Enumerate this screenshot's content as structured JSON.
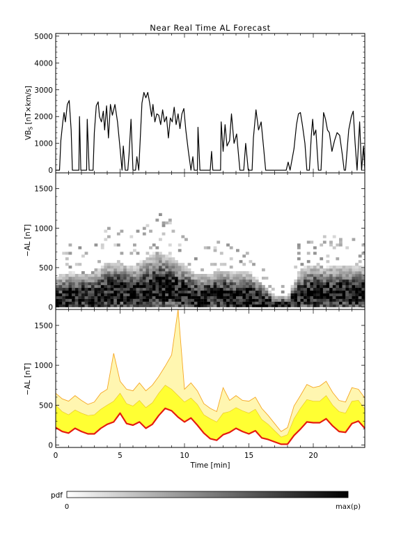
{
  "chart_data": [
    {
      "type": "line",
      "title": "Near Real Time AL Forecast",
      "ylabel_main": "VB",
      "ylabel_sub": "S",
      "ylabel_rest": " [nT×km/s]",
      "xlim": [
        0,
        24
      ],
      "ylim": [
        -100,
        5100
      ],
      "yticks": [
        0,
        1000,
        2000,
        3000,
        4000,
        5000
      ],
      "ytick_labels": [
        "0",
        "1000",
        "2000",
        "3000",
        "4000",
        "5000"
      ],
      "series": [
        {
          "color": "#000000",
          "points": [
            [
              0.0,
              0
            ],
            [
              0.3,
              0
            ],
            [
              0.4,
              1100
            ],
            [
              0.55,
              1800
            ],
            [
              0.65,
              2150
            ],
            [
              0.75,
              1800
            ],
            [
              0.9,
              2450
            ],
            [
              1.05,
              2600
            ],
            [
              1.2,
              1500
            ],
            [
              1.3,
              0
            ],
            [
              1.8,
              0
            ],
            [
              1.85,
              2000
            ],
            [
              1.95,
              0
            ],
            [
              2.4,
              0
            ],
            [
              2.45,
              1900
            ],
            [
              2.6,
              0
            ],
            [
              2.9,
              0
            ],
            [
              3.0,
              1400
            ],
            [
              3.15,
              2400
            ],
            [
              3.3,
              2550
            ],
            [
              3.4,
              2000
            ],
            [
              3.55,
              1800
            ],
            [
              3.7,
              2200
            ],
            [
              3.8,
              1500
            ],
            [
              3.95,
              2400
            ],
            [
              4.1,
              1200
            ],
            [
              4.25,
              2450
            ],
            [
              4.4,
              2050
            ],
            [
              4.6,
              2450
            ],
            [
              4.8,
              1800
            ],
            [
              5.0,
              800
            ],
            [
              5.15,
              0
            ],
            [
              5.25,
              900
            ],
            [
              5.4,
              0
            ],
            [
              5.6,
              0
            ],
            [
              5.7,
              600
            ],
            [
              5.85,
              1900
            ],
            [
              6.0,
              0
            ],
            [
              6.2,
              0
            ],
            [
              6.3,
              500
            ],
            [
              6.45,
              0
            ],
            [
              6.7,
              2500
            ],
            [
              6.85,
              2900
            ],
            [
              7.0,
              2700
            ],
            [
              7.15,
              2900
            ],
            [
              7.3,
              2500
            ],
            [
              7.45,
              2000
            ],
            [
              7.55,
              2450
            ],
            [
              7.7,
              1800
            ],
            [
              7.85,
              2100
            ],
            [
              8.0,
              2050
            ],
            [
              8.15,
              1700
            ],
            [
              8.3,
              2250
            ],
            [
              8.45,
              1800
            ],
            [
              8.6,
              2000
            ],
            [
              8.75,
              1200
            ],
            [
              8.9,
              1950
            ],
            [
              9.05,
              1800
            ],
            [
              9.2,
              2350
            ],
            [
              9.35,
              1700
            ],
            [
              9.5,
              2100
            ],
            [
              9.65,
              1550
            ],
            [
              9.8,
              2100
            ],
            [
              9.95,
              2300
            ],
            [
              10.1,
              1500
            ],
            [
              10.3,
              700
            ],
            [
              10.5,
              0
            ],
            [
              10.65,
              500
            ],
            [
              10.75,
              0
            ],
            [
              11.0,
              0
            ],
            [
              11.05,
              1600
            ],
            [
              11.2,
              0
            ],
            [
              12.0,
              0
            ],
            [
              12.1,
              700
            ],
            [
              12.2,
              0
            ],
            [
              12.8,
              0
            ],
            [
              12.85,
              1800
            ],
            [
              13.0,
              700
            ],
            [
              13.15,
              1700
            ],
            [
              13.3,
              900
            ],
            [
              13.5,
              1100
            ],
            [
              13.65,
              2100
            ],
            [
              13.85,
              1000
            ],
            [
              14.05,
              1350
            ],
            [
              14.3,
              0
            ],
            [
              14.6,
              0
            ],
            [
              14.75,
              1000
            ],
            [
              14.95,
              0
            ],
            [
              15.25,
              0
            ],
            [
              15.35,
              1200
            ],
            [
              15.55,
              2250
            ],
            [
              15.75,
              1500
            ],
            [
              15.95,
              1800
            ],
            [
              16.15,
              800
            ],
            [
              16.3,
              0
            ],
            [
              17.9,
              0
            ],
            [
              18.05,
              300
            ],
            [
              18.2,
              0
            ],
            [
              18.5,
              800
            ],
            [
              18.7,
              1700
            ],
            [
              18.85,
              2100
            ],
            [
              19.0,
              2150
            ],
            [
              19.15,
              1700
            ],
            [
              19.35,
              1000
            ],
            [
              19.5,
              0
            ],
            [
              19.7,
              0
            ],
            [
              19.85,
              1300
            ],
            [
              19.95,
              1900
            ],
            [
              20.05,
              1300
            ],
            [
              20.2,
              1500
            ],
            [
              20.4,
              0
            ],
            [
              20.6,
              0
            ],
            [
              20.8,
              2150
            ],
            [
              20.95,
              1900
            ],
            [
              21.1,
              1500
            ],
            [
              21.25,
              1400
            ],
            [
              21.45,
              700
            ],
            [
              21.65,
              1100
            ],
            [
              21.85,
              1400
            ],
            [
              22.05,
              1300
            ],
            [
              22.25,
              600
            ],
            [
              22.4,
              0
            ],
            [
              22.5,
              0
            ],
            [
              22.75,
              1500
            ],
            [
              22.95,
              2000
            ],
            [
              23.1,
              2200
            ],
            [
              23.25,
              1000
            ],
            [
              23.4,
              0
            ],
            [
              23.6,
              1800
            ],
            [
              23.75,
              0
            ],
            [
              23.9,
              900
            ],
            [
              24.0,
              0
            ]
          ]
        }
      ]
    },
    {
      "type": "heatmap",
      "ylabel": "−AL [nT]",
      "xlim": [
        0,
        24
      ],
      "ylim": [
        -30,
        1700
      ],
      "yticks": [
        0,
        500,
        1000,
        1500
      ],
      "ytick_labels": [
        "0",
        "500",
        "1000",
        "1500"
      ],
      "cell_duration_min": 0.25,
      "cell_height_nT": 35,
      "profile": [
        [
          0,
          80,
          300
        ],
        [
          1,
          100,
          340
        ],
        [
          2,
          130,
          300
        ],
        [
          3,
          120,
          320
        ],
        [
          4,
          180,
          380
        ],
        [
          5,
          200,
          360
        ],
        [
          6,
          170,
          330
        ],
        [
          7,
          200,
          420
        ],
        [
          8,
          250,
          450
        ],
        [
          9,
          230,
          400
        ],
        [
          10,
          170,
          360
        ],
        [
          11,
          110,
          300
        ],
        [
          12,
          130,
          300
        ],
        [
          13,
          140,
          330
        ],
        [
          14,
          120,
          320
        ],
        [
          15,
          130,
          320
        ],
        [
          16,
          80,
          230
        ],
        [
          17,
          20,
          120
        ],
        [
          18,
          20,
          120
        ],
        [
          19,
          150,
          330
        ],
        [
          20,
          170,
          360
        ],
        [
          21,
          160,
          340
        ],
        [
          22,
          170,
          350
        ],
        [
          23,
          170,
          350
        ],
        [
          24,
          160,
          340
        ]
      ]
    },
    {
      "type": "area",
      "xlabel": "Time [min]",
      "ylabel": "−AL [nT]",
      "xlim": [
        0,
        24
      ],
      "ylim": [
        -30,
        1700
      ],
      "xticks": [
        0,
        5,
        10,
        15,
        20
      ],
      "xtick_labels": [
        "0",
        "5",
        "10",
        "15",
        "20"
      ],
      "yticks": [
        0,
        500,
        1000,
        1500
      ],
      "ytick_labels": [
        "0",
        "500",
        "1000",
        "1500"
      ],
      "series": [
        {
          "color": "#e51b0f",
          "x": [
            0,
            0.5,
            1,
            1.5,
            2,
            2.5,
            3,
            3.5,
            4,
            4.5,
            5,
            5.5,
            6,
            6.5,
            7,
            7.5,
            8,
            8.5,
            9,
            9.5,
            10,
            10.5,
            11,
            11.5,
            12,
            12.5,
            13,
            13.5,
            14,
            14.5,
            15,
            15.5,
            16,
            16.5,
            17,
            17.5,
            18,
            18.5,
            19,
            19.5,
            20,
            20.5,
            21,
            21.5,
            22,
            22.5,
            23,
            23.5,
            24
          ],
          "values": [
            220,
            170,
            150,
            210,
            170,
            140,
            140,
            210,
            260,
            290,
            400,
            270,
            250,
            290,
            210,
            260,
            370,
            460,
            430,
            350,
            290,
            340,
            250,
            150,
            80,
            60,
            130,
            160,
            210,
            170,
            140,
            180,
            90,
            70,
            40,
            10,
            10,
            120,
            200,
            290,
            280,
            280,
            330,
            240,
            170,
            160,
            270,
            300,
            210
          ]
        },
        {
          "color": "#ffff33",
          "x": [
            0,
            0.5,
            1,
            1.5,
            2,
            2.5,
            3,
            3.5,
            4,
            4.5,
            5,
            5.5,
            6,
            6.5,
            7,
            7.5,
            8,
            8.5,
            9,
            9.5,
            10,
            10.5,
            11,
            11.5,
            12,
            12.5,
            13,
            13.5,
            14,
            14.5,
            15,
            15.5,
            16,
            16.5,
            17,
            17.5,
            18,
            18.5,
            19,
            19.5,
            20,
            20.5,
            21,
            21.5,
            22,
            22.5,
            23,
            23.5,
            24
          ],
          "values": [
            500,
            420,
            380,
            440,
            400,
            370,
            380,
            450,
            500,
            550,
            650,
            520,
            490,
            560,
            470,
            530,
            650,
            750,
            700,
            620,
            540,
            590,
            510,
            380,
            330,
            290,
            400,
            420,
            470,
            430,
            400,
            450,
            320,
            260,
            180,
            100,
            130,
            330,
            460,
            570,
            550,
            550,
            620,
            500,
            420,
            400,
            550,
            560,
            450
          ]
        },
        {
          "color": "#f5a623",
          "x": [
            0,
            0.5,
            1,
            1.5,
            2,
            2.5,
            3,
            3.5,
            4,
            4.5,
            5,
            5.5,
            6,
            6.5,
            7,
            7.5,
            8,
            8.5,
            9,
            9.5,
            10,
            10.5,
            11,
            11.5,
            12,
            12.5,
            13,
            13.5,
            14,
            14.5,
            15,
            15.5,
            16,
            16.5,
            17,
            17.5,
            18,
            18.5,
            19,
            19.5,
            20,
            20.5,
            21,
            21.5,
            22,
            22.5,
            23,
            23.5,
            24
          ],
          "values": [
            650,
            580,
            550,
            620,
            560,
            510,
            540,
            650,
            700,
            1150,
            800,
            700,
            680,
            780,
            680,
            750,
            860,
            990,
            1130,
            1700,
            700,
            780,
            680,
            520,
            460,
            420,
            720,
            560,
            620,
            560,
            550,
            600,
            460,
            370,
            270,
            170,
            220,
            490,
            620,
            760,
            720,
            740,
            800,
            660,
            560,
            540,
            720,
            700,
            590
          ]
        }
      ]
    }
  ],
  "colorbar": {
    "label": "pdf",
    "min_label": "0",
    "max_label": "max(p)"
  }
}
